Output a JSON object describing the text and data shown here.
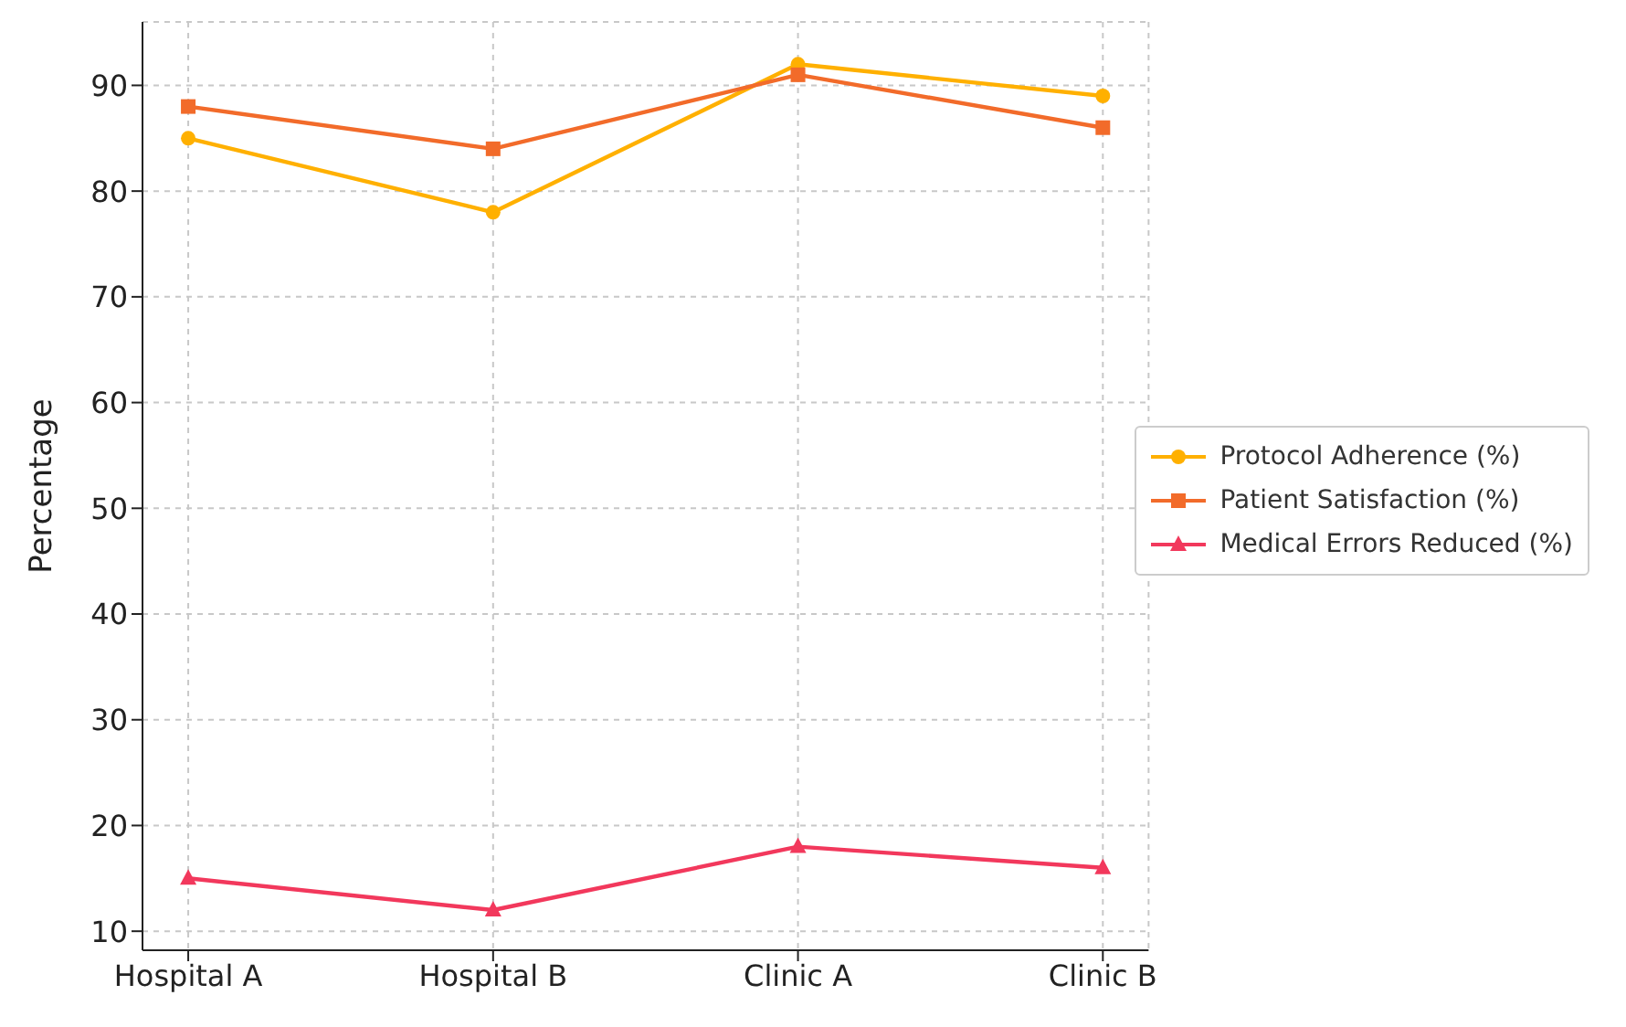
{
  "chart_data": {
    "type": "line",
    "ylabel": "Percentage",
    "categories": [
      "Hospital A",
      "Hospital B",
      "Clinic A",
      "Clinic B"
    ],
    "series": [
      {
        "name": "Protocol Adherence (%)",
        "color": "#ffb000",
        "values": [
          85,
          78,
          92,
          89
        ],
        "marker": "circle"
      },
      {
        "name": "Patient Satisfaction (%)",
        "color": "#f26b2a",
        "values": [
          88,
          84,
          91,
          86
        ],
        "marker": "square"
      },
      {
        "name": "Medical Errors Reduced (%)",
        "color": "#f2385c",
        "values": [
          15,
          12,
          18,
          16
        ],
        "marker": "triangle"
      }
    ],
    "ylim": [
      8.2,
      96
    ],
    "yticks": [
      10,
      20,
      30,
      40,
      50,
      60,
      70,
      80,
      90
    ],
    "grid": true,
    "legend": "center right",
    "line_style": "solid"
  }
}
